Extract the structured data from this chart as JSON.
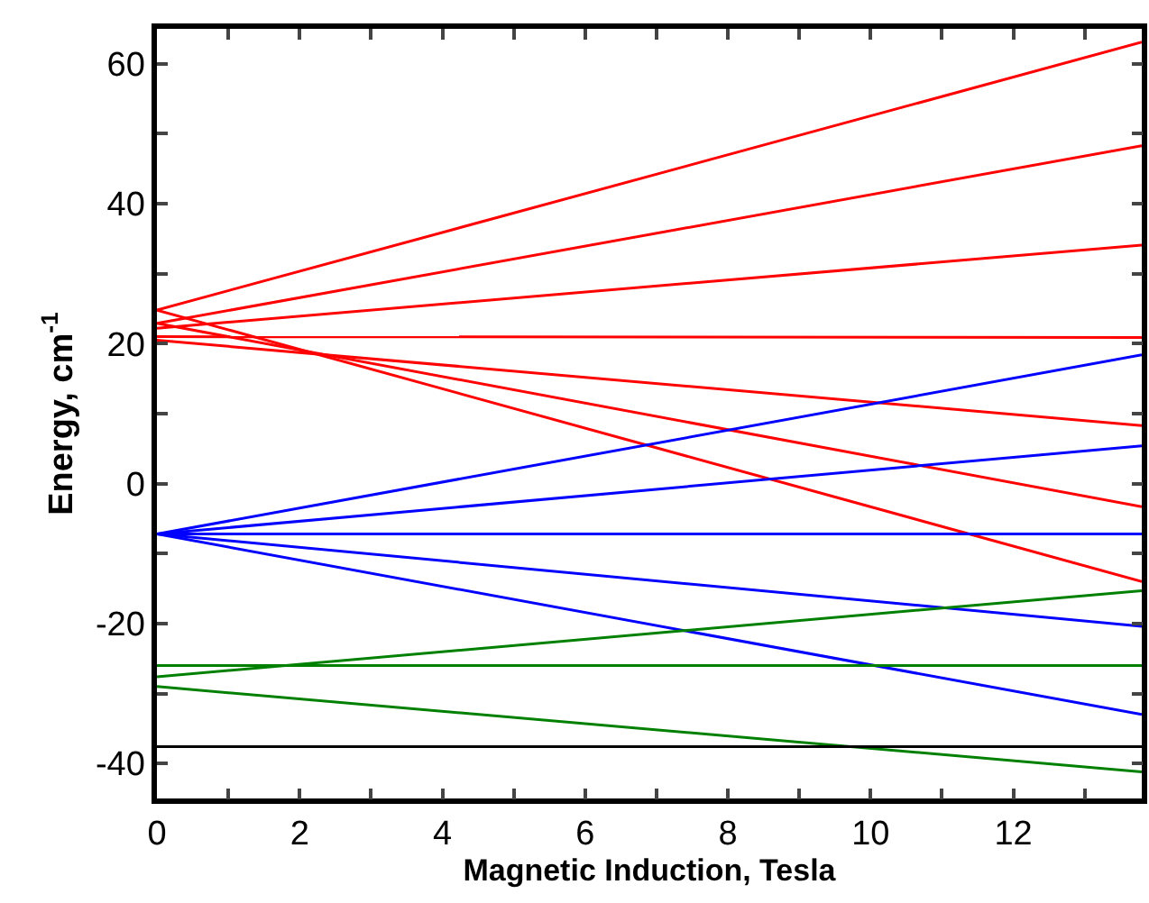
{
  "chart_data": {
    "type": "line",
    "xlabel": "Magnetic Induction, Tesla",
    "ylabel": "Energy, cm$^{-1}$",
    "x": [
      0,
      13.8
    ],
    "series": [
      {
        "color": "#ff0000",
        "values": [
          24.8,
          63.1
        ]
      },
      {
        "color": "#ff0000",
        "values": [
          22.9,
          48.3
        ]
      },
      {
        "color": "#ff0000",
        "values": [
          22.2,
          34.1
        ]
      },
      {
        "color": "#ff0000",
        "values": [
          21.0,
          20.9
        ]
      },
      {
        "color": "#ff0000",
        "values": [
          20.5,
          8.3
        ]
      },
      {
        "color": "#ff0000",
        "values": [
          22.9,
          -3.3
        ]
      },
      {
        "color": "#ff0000",
        "values": [
          24.8,
          -14.0
        ]
      },
      {
        "color": "#0000ff",
        "values": [
          -7.2,
          18.4
        ]
      },
      {
        "color": "#0000ff",
        "values": [
          -7.2,
          5.4
        ]
      },
      {
        "color": "#0000ff",
        "values": [
          -7.2,
          -7.2
        ]
      },
      {
        "color": "#0000ff",
        "values": [
          -7.2,
          -20.4
        ]
      },
      {
        "color": "#0000ff",
        "values": [
          -7.2,
          -33.0
        ]
      },
      {
        "color": "#008000",
        "values": [
          -26.0,
          -26.0
        ]
      },
      {
        "color": "#008000",
        "values": [
          -27.6,
          -15.3
        ]
      },
      {
        "color": "#008000",
        "values": [
          -29.0,
          -41.2
        ]
      },
      {
        "color": "#000000",
        "values": [
          -37.6,
          -37.6
        ]
      }
    ],
    "xlim": [
      0,
      13.8
    ],
    "ylim": [
      -45,
      65
    ],
    "xticks": [
      0,
      {
        "value": 1,
        "label": null
      },
      2,
      {
        "value": 3,
        "label": null
      },
      4,
      {
        "value": 5,
        "label": null
      },
      6,
      {
        "value": 7,
        "label": null
      },
      8,
      {
        "value": 9,
        "label": null
      },
      10,
      {
        "value": 11,
        "label": null
      },
      12,
      {
        "value": 13,
        "label": null
      }
    ],
    "yticks": [
      -40,
      {
        "value": -30,
        "label": null
      },
      -20,
      {
        "value": -10,
        "label": null
      },
      0,
      {
        "value": 10,
        "label": null
      },
      20,
      {
        "value": 30,
        "label": null
      },
      40,
      {
        "value": 50,
        "label": null
      },
      60
    ],
    "marker": "none",
    "line_style": "solid"
  }
}
